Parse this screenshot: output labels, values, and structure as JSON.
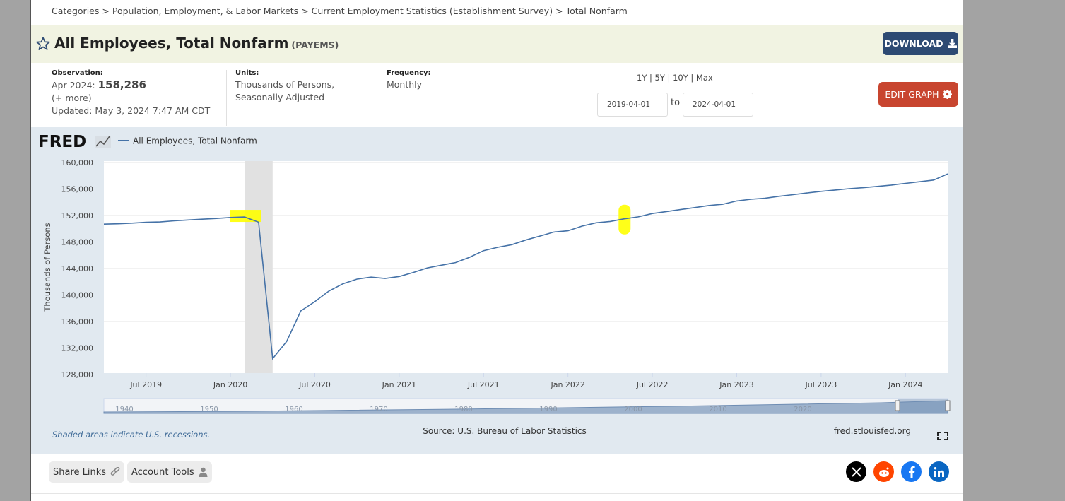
{
  "breadcrumb": [
    "Categories",
    "Population, Employment, & Labor Markets",
    "Current Employment Statistics (Establishment Survey)",
    "Total Nonfarm"
  ],
  "breadcrumb_sep": ">",
  "series": {
    "title": "All Employees, Total Nonfarm",
    "code": "(PAYEMS)"
  },
  "download_label": "DOWNLOAD",
  "observation": {
    "label": "Observation:",
    "date": "Apr 2024:",
    "value": "158,286",
    "more": "(+ more)",
    "updated_label": "Updated:",
    "updated": "May 3, 2024 7:47 AM CDT"
  },
  "units": {
    "label": "Units:",
    "line1": "Thousands of Persons,",
    "line2": "Seasonally Adjusted"
  },
  "frequency": {
    "label": "Frequency:",
    "value": "Monthly"
  },
  "ranges": [
    "1Y",
    "5Y",
    "10Y",
    "Max"
  ],
  "date_from": "2019-04-01",
  "date_to": "2024-04-01",
  "to_label": "to",
  "edit_label": "EDIT GRAPH",
  "fred_logo": "FRED",
  "shaded_note": "Shaded areas indicate U.S. recessions.",
  "source": "Source: U.S. Bureau of Labor Statistics",
  "site": "fred.stlouisfed.org",
  "share_label": "Share Links",
  "account_label": "Account Tools",
  "colors": {
    "line": "#4572a7",
    "recession": "#e1e1e1",
    "highlight": "#ffff00",
    "download": "#2d4a73",
    "edit": "#c8452f",
    "band": "#e1e9f0"
  },
  "chart_data": {
    "type": "line",
    "legend": "All Employees, Total Nonfarm",
    "ylabel": "Thousands of Persons",
    "ylim": [
      128000,
      160000
    ],
    "yticks": [
      "160,000",
      "156,000",
      "152,000",
      "148,000",
      "144,000",
      "140,000",
      "136,000",
      "132,000",
      "128,000"
    ],
    "ytick_values": [
      160000,
      156000,
      152000,
      148000,
      144000,
      140000,
      136000,
      132000,
      128000
    ],
    "xticks": [
      "Jul 2019",
      "Jan 2020",
      "Jul 2020",
      "Jan 2021",
      "Jul 2021",
      "Jan 2022",
      "Jul 2022",
      "Jan 2023",
      "Jul 2023",
      "Jan 2024"
    ],
    "recession": [
      "2020-02",
      "2020-04"
    ],
    "navigator_years": [
      "1940",
      "1950",
      "1960",
      "1970",
      "1980",
      "1990",
      "2000",
      "2010",
      "2020"
    ],
    "x": [
      "2019-04",
      "2019-05",
      "2019-06",
      "2019-07",
      "2019-08",
      "2019-09",
      "2019-10",
      "2019-11",
      "2019-12",
      "2020-01",
      "2020-02",
      "2020-03",
      "2020-04",
      "2020-05",
      "2020-06",
      "2020-07",
      "2020-08",
      "2020-09",
      "2020-10",
      "2020-11",
      "2020-12",
      "2021-01",
      "2021-02",
      "2021-03",
      "2021-04",
      "2021-05",
      "2021-06",
      "2021-07",
      "2021-08",
      "2021-09",
      "2021-10",
      "2021-11",
      "2021-12",
      "2022-01",
      "2022-02",
      "2022-03",
      "2022-04",
      "2022-05",
      "2022-06",
      "2022-07",
      "2022-08",
      "2022-09",
      "2022-10",
      "2022-11",
      "2022-12",
      "2023-01",
      "2023-02",
      "2023-03",
      "2023-04",
      "2023-05",
      "2023-06",
      "2023-07",
      "2023-08",
      "2023-09",
      "2023-10",
      "2023-11",
      "2023-12",
      "2024-01",
      "2024-02",
      "2024-03",
      "2024-04"
    ],
    "values": [
      150700,
      150750,
      150850,
      150980,
      151030,
      151200,
      151330,
      151450,
      151550,
      151700,
      151780,
      151000,
      130400,
      133000,
      137600,
      139000,
      140600,
      141700,
      142400,
      142700,
      142500,
      142800,
      143400,
      144100,
      144500,
      144900,
      145700,
      146700,
      147200,
      147600,
      148300,
      148900,
      149500,
      149700,
      150400,
      150900,
      151100,
      151500,
      151800,
      152300,
      152600,
      152900,
      153200,
      153500,
      153700,
      154200,
      154450,
      154600,
      154900,
      155150,
      155400,
      155650,
      155850,
      156050,
      156200,
      156400,
      156600,
      156850,
      157100,
      157350,
      158286
    ]
  }
}
